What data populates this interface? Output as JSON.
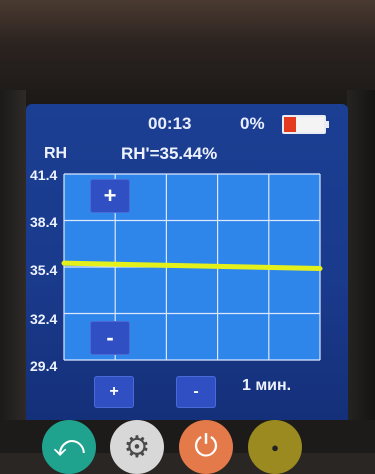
{
  "status": {
    "time": "00:13",
    "battery_text": "0%",
    "battery_level": 0.3
  },
  "reading": {
    "axis_label": "RH",
    "value_text": "RH'=35.44%"
  },
  "chart_data": {
    "type": "line",
    "y_ticks": [
      "41.4",
      "38.4",
      "35.4",
      "32.4",
      "29.4"
    ],
    "ylim": [
      29.4,
      41.4
    ],
    "x": [
      0,
      1
    ],
    "series": [
      {
        "values": [
          35.65,
          35.3
        ]
      }
    ],
    "grid": true,
    "colors": {
      "series": "#e4f01a",
      "grid": "#dce6ff",
      "plot_bg": "#2f86ea"
    }
  },
  "controls": {
    "zoom_in": "+",
    "zoom_out": "-",
    "time_plus": "+",
    "time_minus": "-",
    "time_scale": "1 мин."
  },
  "hardware_buttons": {
    "back_icon": "back-arrow-icon",
    "settings_icon": "gear-icon",
    "power_icon": "power-icon",
    "ok_icon": "ok-icon"
  }
}
